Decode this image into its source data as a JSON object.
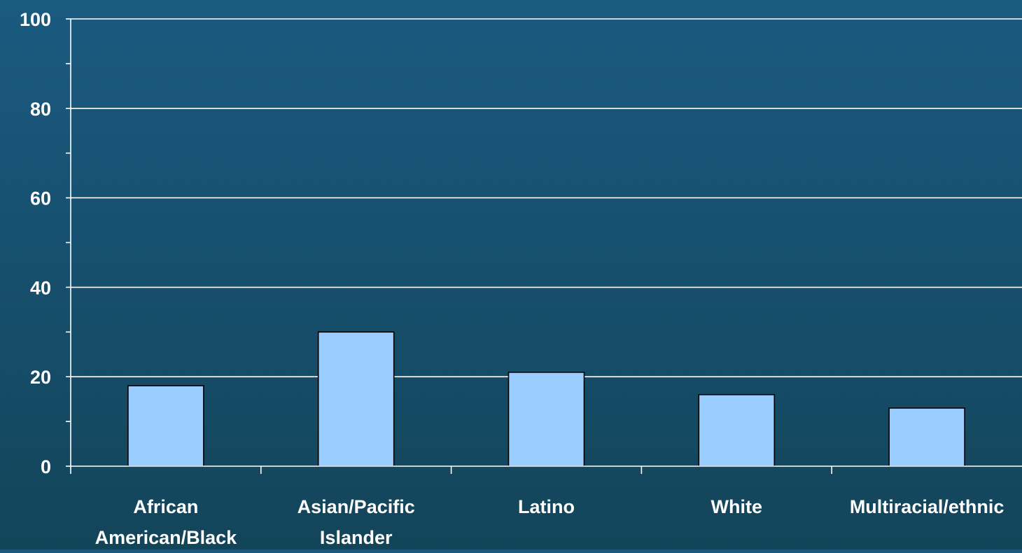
{
  "chart_data": {
    "type": "bar",
    "title": "",
    "xlabel": "",
    "ylabel": "",
    "categories": [
      [
        "African",
        "American/Black"
      ],
      [
        "Asian/Pacific",
        "Islander"
      ],
      [
        "Latino"
      ],
      [
        "White"
      ],
      [
        "Multiracial/ethnic"
      ]
    ],
    "values": [
      18,
      30,
      21,
      16,
      13
    ],
    "ylim": [
      0,
      100
    ],
    "yticks": [
      "0",
      "20",
      "40",
      "60",
      "80",
      "100"
    ],
    "grid": true,
    "legend": false,
    "colors": {
      "bar_fill": "#99ccff",
      "bar_stroke": "#000000",
      "gridline": "#ffffff",
      "axis": "#ffffff",
      "text": "#ffffff",
      "background_top": "#1b5a80",
      "background_bottom": "#134559"
    }
  }
}
